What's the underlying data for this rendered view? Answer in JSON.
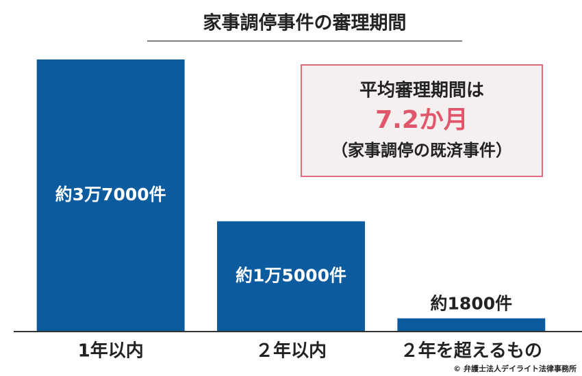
{
  "chart_data": {
    "type": "bar",
    "title": "家事調停事件の審理期間",
    "categories": [
      "1年以内",
      "２年以内",
      "２年を超えるもの"
    ],
    "values": [
      37000,
      15000,
      1800
    ],
    "value_labels": [
      "約3万7000件",
      "約1万5000件",
      "約1800件"
    ],
    "color": "#0b5b9e",
    "annotation": {
      "lines": [
        "平均審理期間は",
        "7.2か月",
        "（家事調停の既済事件）"
      ]
    },
    "credit": "© 弁護士法人デイライト法律事務所"
  }
}
